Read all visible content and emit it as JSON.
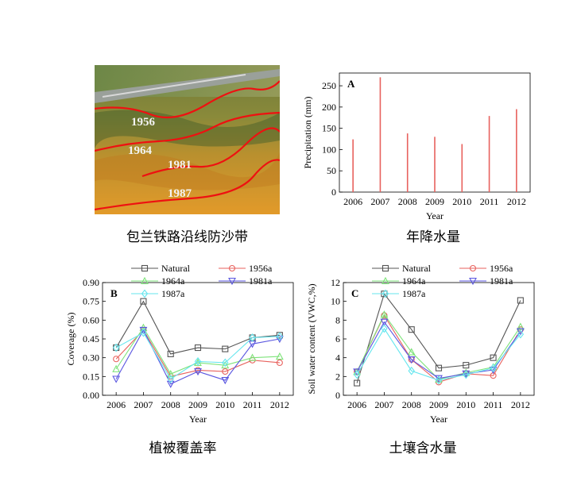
{
  "photo": {
    "labels": [
      "1956",
      "1964",
      "1981",
      "1987"
    ],
    "caption": "包兰铁路沿线防沙带"
  },
  "captions": {
    "a": "年降水量",
    "b": "植被覆盖率",
    "c": "土壤含水量"
  },
  "colors": {
    "natural": "#555555",
    "1956a": "#e8625e",
    "1964a": "#7ee37a",
    "1981a": "#5a56e0",
    "1987a": "#66e6ee",
    "precip_bar": "#e8625e"
  },
  "chart_data": [
    {
      "id": "A",
      "type": "bar",
      "panel_letter": "A",
      "title": "",
      "xlabel": "Year",
      "ylabel": "Precipitation (mm)",
      "categories": [
        "2006",
        "2007",
        "2008",
        "2009",
        "2010",
        "2011",
        "2012"
      ],
      "values": [
        124,
        270,
        138,
        130,
        113,
        179,
        195
      ],
      "ylim": [
        0,
        280
      ],
      "yticks": [
        "0",
        "50",
        "100",
        "150",
        "200",
        "250"
      ],
      "legend": "none"
    },
    {
      "id": "B",
      "type": "line",
      "panel_letter": "B",
      "title": "",
      "xlabel": "Year",
      "ylabel": "Coverage (%)",
      "x": [
        "2006",
        "2007",
        "2008",
        "2009",
        "2010",
        "2011",
        "2012"
      ],
      "ylim": [
        0,
        0.9
      ],
      "yticks": [
        "0.00",
        "0.15",
        "0.30",
        "0.45",
        "0.60",
        "0.75",
        "0.90"
      ],
      "legend": "top",
      "series": [
        {
          "name": "Natural",
          "marker": "square",
          "values": [
            0.38,
            0.75,
            0.33,
            0.38,
            0.37,
            0.46,
            0.48
          ]
        },
        {
          "name": "1956a",
          "marker": "circle",
          "values": [
            0.29,
            0.52,
            0.15,
            0.2,
            0.19,
            0.28,
            0.26
          ]
        },
        {
          "name": "1964a",
          "marker": "triangle-up",
          "values": [
            0.21,
            0.54,
            0.17,
            0.26,
            0.24,
            0.3,
            0.31
          ]
        },
        {
          "name": "1981a",
          "marker": "triangle-down",
          "values": [
            0.13,
            0.52,
            0.09,
            0.19,
            0.12,
            0.41,
            0.45
          ]
        },
        {
          "name": "1987a",
          "marker": "diamond",
          "values": [
            0.38,
            0.5,
            0.13,
            0.27,
            0.26,
            0.46,
            0.47
          ]
        }
      ]
    },
    {
      "id": "C",
      "type": "line",
      "panel_letter": "C",
      "title": "",
      "xlabel": "Year",
      "ylabel": "Soil water content (VWC,%)",
      "x": [
        "2006",
        "2007",
        "2008",
        "2009",
        "2010",
        "2011",
        "2012"
      ],
      "ylim": [
        0,
        12
      ],
      "yticks": [
        "0",
        "2",
        "4",
        "6",
        "8",
        "10",
        "12"
      ],
      "legend": "top",
      "series": [
        {
          "name": "Natural",
          "marker": "square",
          "values": [
            1.3,
            10.8,
            7.0,
            2.9,
            3.2,
            4.0,
            10.1
          ]
        },
        {
          "name": "1956a",
          "marker": "circle",
          "values": [
            2.5,
            8.5,
            3.8,
            1.4,
            2.3,
            2.1,
            7.0
          ]
        },
        {
          "name": "1964a",
          "marker": "triangle-up",
          "values": [
            2.5,
            8.6,
            4.6,
            1.7,
            2.4,
            3.0,
            7.3
          ]
        },
        {
          "name": "1981a",
          "marker": "triangle-down",
          "values": [
            2.5,
            7.8,
            3.8,
            1.8,
            2.3,
            2.7,
            6.8
          ]
        },
        {
          "name": "1987a",
          "marker": "diamond",
          "values": [
            2.2,
            7.1,
            2.6,
            1.6,
            2.2,
            2.9,
            6.5
          ]
        }
      ]
    }
  ]
}
